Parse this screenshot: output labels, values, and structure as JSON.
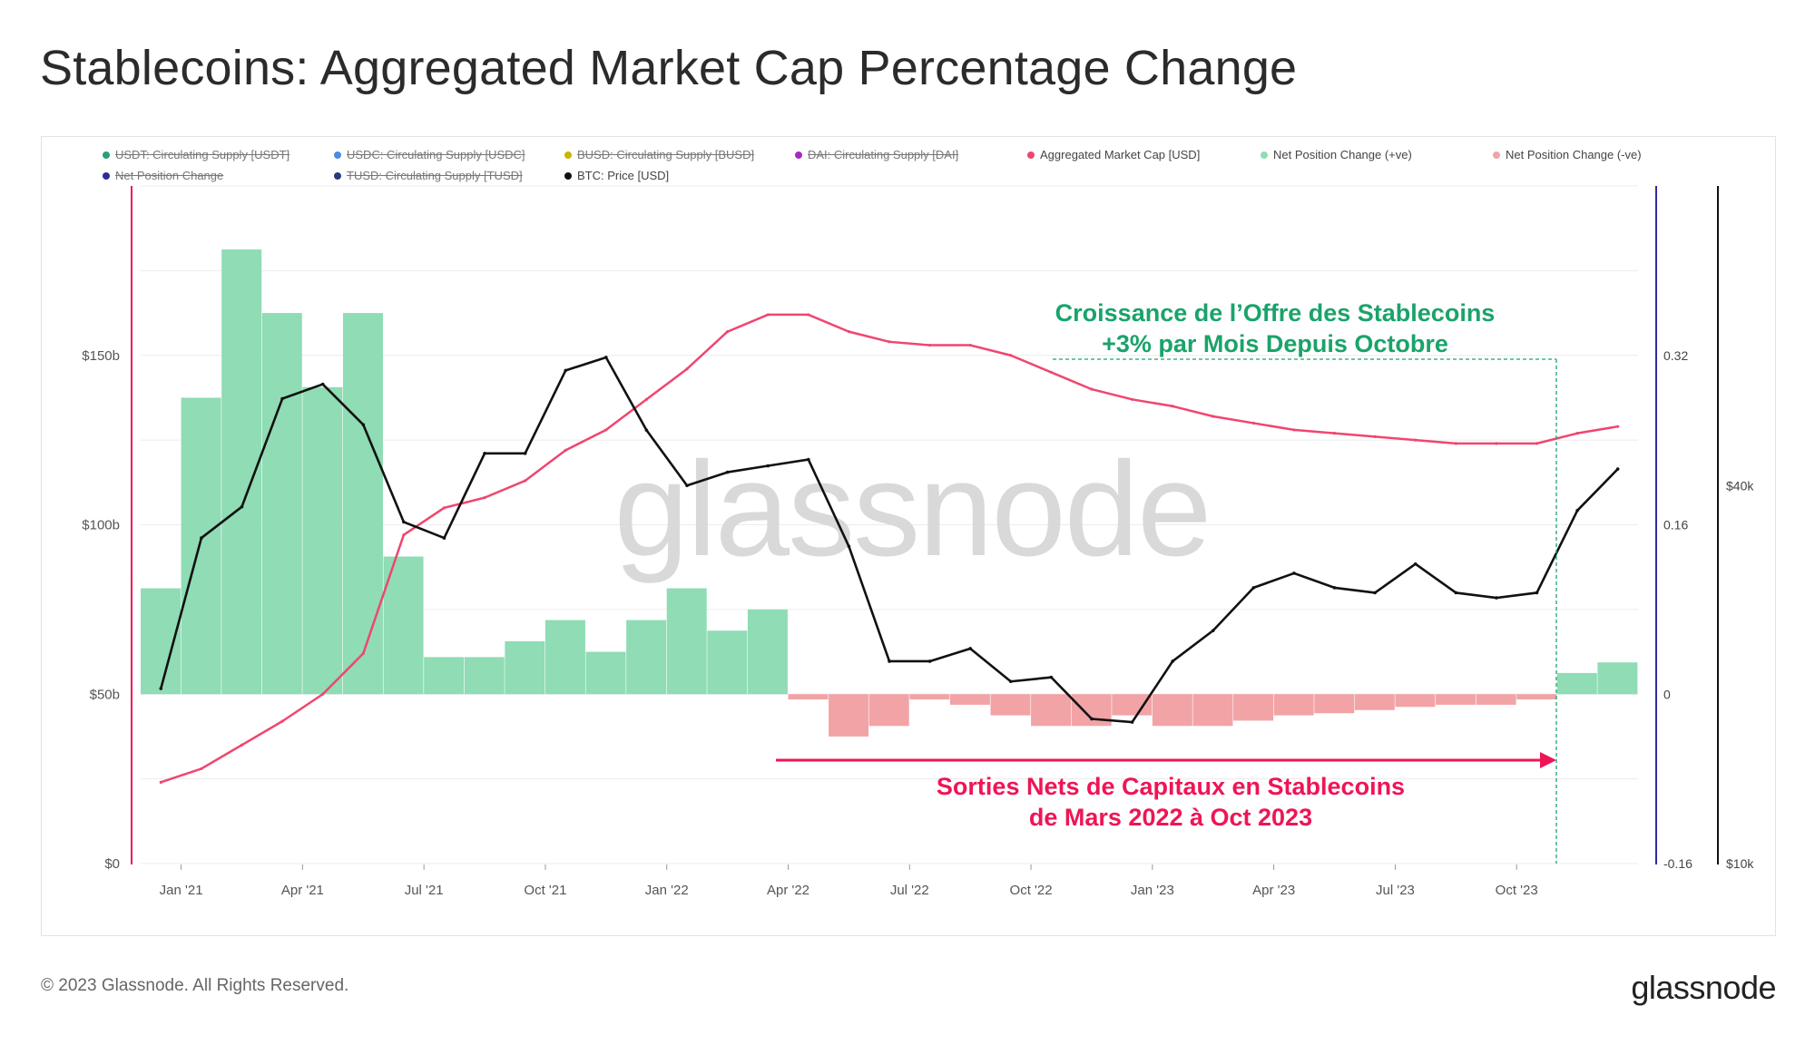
{
  "page": {
    "title": "Stablecoins: Aggregated Market Cap Percentage Change",
    "copyright": "© 2023 Glassnode. All Rights Reserved.",
    "brand": "glassnode",
    "watermark": "glassnode"
  },
  "legend": [
    {
      "label": "USDT: Circulating Supply [USDT]",
      "color": "#26a17b",
      "enabled": false
    },
    {
      "label": "USDC: Circulating Supply [USDC]",
      "color": "#4a8be8",
      "enabled": false
    },
    {
      "label": "BUSD: Circulating Supply [BUSD]",
      "color": "#c9b400",
      "enabled": false
    },
    {
      "label": "DAI: Circulating Supply [DAI]",
      "color": "#a42ac2",
      "enabled": false
    },
    {
      "label": "Aggregated Market Cap [USD]",
      "color": "#f0466e",
      "enabled": true
    },
    {
      "label": "Net Position Change (+ve)",
      "color": "#8fdcb5",
      "enabled": true
    },
    {
      "label": "Net Position Change (-ve)",
      "color": "#f2a3a6",
      "enabled": true
    },
    {
      "label": "Net Position Change",
      "color": "#2c2c9c",
      "enabled": false
    },
    {
      "label": "TUSD: Circulating Supply [TUSD]",
      "color": "#2b3a7a",
      "enabled": false
    },
    {
      "label": "BTC: Price [USD]",
      "color": "#111111",
      "enabled": true
    }
  ],
  "annotations": {
    "green_line1": "Croissance de l’Offre des Stablecoins",
    "green_line2": "+3% par Mois Depuis Octobre",
    "red_line1": "Sorties Nets de Capitaux en Stablecoins",
    "red_line2": "de Mars 2022 à Oct 2023"
  },
  "chart_data": {
    "type": "line",
    "title": "Stablecoins: Aggregated Market Cap Percentage Change",
    "x_ticks": [
      "Jan '21",
      "Apr '21",
      "Jul '21",
      "Oct '21",
      "Jan '22",
      "Apr '22",
      "Jul '22",
      "Oct '22",
      "Jan '23",
      "Apr '23",
      "Jul '23",
      "Oct '23"
    ],
    "x_range": [
      "Dec 2020",
      "Dec 2023"
    ],
    "left_axis": {
      "label": "Aggregated Market Cap [USD]",
      "ticks": [
        "$0",
        "$50b",
        "$100b",
        "$150b"
      ],
      "range": [
        0,
        200
      ]
    },
    "mid_axis": {
      "label": "Net Position Change",
      "ticks": [
        "-0.16",
        "0",
        "0.16",
        "0.32"
      ],
      "range": [
        -0.16,
        0.48
      ]
    },
    "right_axis": {
      "label": "BTC: Price [USD]",
      "scale": "log",
      "ticks": [
        "$10k",
        "$40k"
      ],
      "range": [
        10000,
        120000
      ]
    },
    "months": [
      "Dec '20",
      "Jan '21",
      "Feb '21",
      "Mar '21",
      "Apr '21",
      "May '21",
      "Jun '21",
      "Jul '21",
      "Aug '21",
      "Sep '21",
      "Oct '21",
      "Nov '21",
      "Dec '21",
      "Jan '22",
      "Feb '22",
      "Mar '22",
      "Apr '22",
      "May '22",
      "Jun '22",
      "Jul '22",
      "Aug '22",
      "Sep '22",
      "Oct '22",
      "Nov '22",
      "Dec '22",
      "Jan '23",
      "Feb '23",
      "Mar '23",
      "Apr '23",
      "May '23",
      "Jun '23",
      "Jul '23",
      "Aug '23",
      "Sep '23",
      "Oct '23",
      "Nov '23",
      "Dec '23"
    ],
    "series": [
      {
        "name": "Aggregated Market Cap [USD]",
        "unit": "billion USD",
        "color": "#f0466e",
        "values": [
          24,
          28,
          35,
          42,
          50,
          62,
          97,
          105,
          108,
          113,
          122,
          128,
          137,
          146,
          157,
          162,
          162,
          157,
          154,
          153,
          153,
          150,
          145,
          140,
          137,
          135,
          132,
          130,
          128,
          127,
          126,
          125,
          124,
          124,
          124,
          127,
          129
        ]
      },
      {
        "name": "Net Position Change (+ve/-ve)",
        "unit": "30d % change (fraction)",
        "colors": {
          "positive": "#8fdcb5",
          "negative": "#f2a3a6"
        },
        "values": [
          0.1,
          0.28,
          0.42,
          0.36,
          0.29,
          0.36,
          0.13,
          0.035,
          0.035,
          0.05,
          0.07,
          0.04,
          0.07,
          0.1,
          0.06,
          0.08,
          -0.005,
          -0.04,
          -0.03,
          -0.005,
          -0.01,
          -0.02,
          -0.03,
          -0.03,
          -0.02,
          -0.03,
          -0.03,
          -0.025,
          -0.02,
          -0.018,
          -0.015,
          -0.012,
          -0.01,
          -0.01,
          -0.005,
          0.02,
          0.03
        ]
      },
      {
        "name": "BTC: Price [USD]",
        "unit": "USD",
        "color": "#111111",
        "values": [
          19000,
          33000,
          37000,
          55000,
          58000,
          50000,
          35000,
          33000,
          45000,
          45000,
          61000,
          64000,
          49000,
          40000,
          42000,
          43000,
          44000,
          32000,
          21000,
          21000,
          22000,
          19500,
          19800,
          17000,
          16800,
          21000,
          23500,
          27500,
          29000,
          27500,
          27000,
          30000,
          27000,
          26500,
          27000,
          36500,
          42500
        ]
      }
    ]
  }
}
